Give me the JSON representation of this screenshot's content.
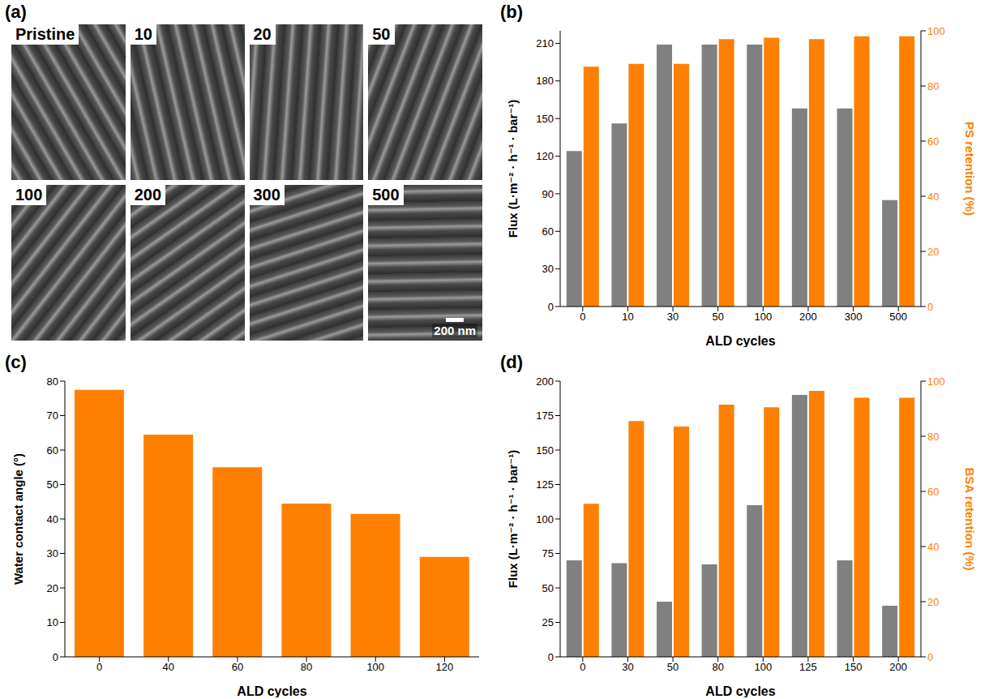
{
  "image_panel": {
    "panel": "(a)",
    "tiles": [
      "Pristine",
      "10",
      "20",
      "50",
      "100",
      "200",
      "300",
      "500"
    ],
    "scale_bar": "200 nm"
  },
  "chart_data": [
    {
      "panel": "(b)",
      "type": "bar",
      "xlabel": "ALD cycles",
      "ylabel": "Flux (L·m⁻² · h⁻¹ · bar⁻¹)",
      "y2label": "PS retention (%)",
      "categories": [
        "0",
        "10",
        "30",
        "50",
        "100",
        "200",
        "300",
        "500"
      ],
      "series": [
        {
          "color": "#808080",
          "values": [
            124,
            146,
            209,
            209,
            209,
            158,
            158,
            85
          ]
        },
        {
          "color": "#ff8000",
          "axis": "y2",
          "values": [
            87,
            88,
            88,
            97,
            97.5,
            97,
            98,
            98
          ]
        }
      ],
      "ylim": [
        0,
        220
      ],
      "yticks": [
        0,
        30,
        60,
        90,
        120,
        150,
        180,
        210
      ],
      "y2lim": [
        0,
        100
      ],
      "y2ticks": [
        0,
        20,
        40,
        60,
        80,
        100
      ],
      "grid": false
    },
    {
      "panel": "(c)",
      "type": "bar",
      "xlabel": "ALD cycles",
      "ylabel": "Water contact angle (°)",
      "categories": [
        "0",
        "40",
        "60",
        "80",
        "100",
        "120"
      ],
      "series": [
        {
          "color": "#ff8000",
          "values": [
            77.5,
            64.5,
            55,
            44.5,
            41.5,
            29
          ]
        }
      ],
      "ylim": [
        0,
        80
      ],
      "yticks": [
        0,
        10,
        20,
        30,
        40,
        50,
        60,
        70,
        80
      ],
      "grid": false
    },
    {
      "panel": "(d)",
      "type": "bar",
      "xlabel": "ALD cycles",
      "ylabel": "Flux (L·m⁻² · h⁻¹ · bar⁻¹)",
      "y2label": "BSA retention (%)",
      "categories": [
        "0",
        "30",
        "50",
        "80",
        "100",
        "125",
        "150",
        "200"
      ],
      "series": [
        {
          "color": "#808080",
          "values": [
            70,
            68,
            40,
            67,
            110,
            190,
            70,
            37
          ]
        },
        {
          "color": "#ff8000",
          "axis": "y2",
          "values": [
            55.5,
            85.5,
            83.5,
            91.5,
            90.5,
            96.5,
            94,
            94
          ]
        }
      ],
      "ylim": [
        0,
        200
      ],
      "yticks": [
        0,
        25,
        50,
        75,
        100,
        125,
        150,
        175,
        200
      ],
      "y2lim": [
        0,
        100
      ],
      "y2ticks": [
        0,
        20,
        40,
        60,
        80,
        100
      ],
      "grid": false
    }
  ]
}
